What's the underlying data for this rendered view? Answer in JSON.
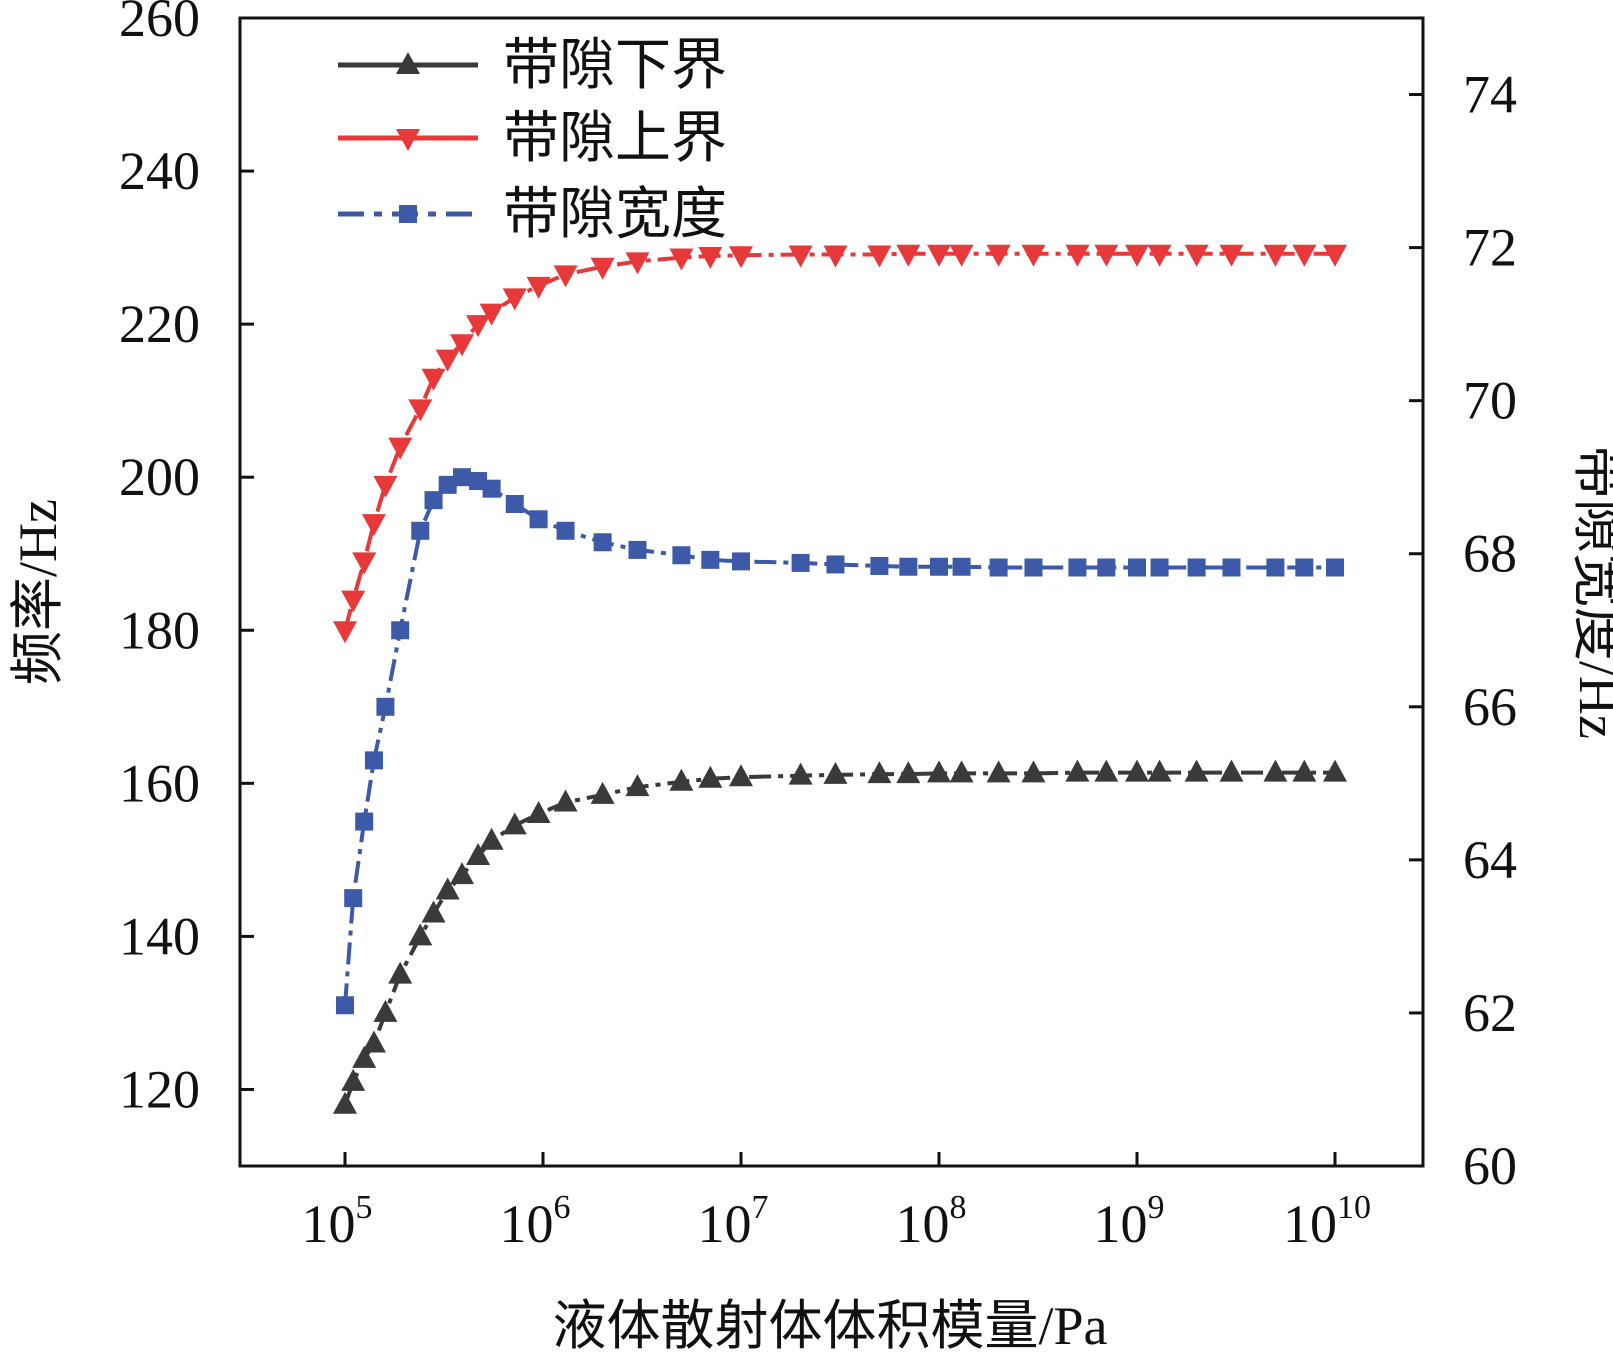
{
  "chart_data": {
    "type": "line",
    "xscale": "log",
    "x_ticks": [
      {
        "base": "10",
        "exp": "5",
        "value": 100000
      },
      {
        "base": "10",
        "exp": "6",
        "value": 1000000
      },
      {
        "base": "10",
        "exp": "7",
        "value": 10000000
      },
      {
        "base": "10",
        "exp": "8",
        "value": 100000000
      },
      {
        "base": "10",
        "exp": "9",
        "value": 1000000000
      },
      {
        "base": "10",
        "exp": "10",
        "value": 10000000000
      }
    ],
    "xlabel": "液体散射体体积模量/Pa",
    "ylabel": "频率/Hz",
    "ylim": [
      110,
      260
    ],
    "y_ticks": [
      "120",
      "140",
      "160",
      "180",
      "200",
      "220",
      "240",
      "260"
    ],
    "y2label": "带隙宽度/Hz",
    "y2lim": [
      60,
      75
    ],
    "y2_ticks": [
      "60",
      "62",
      "64",
      "66",
      "68",
      "70",
      "72",
      "74"
    ],
    "legend_position": "top-left",
    "x": [
      100000.0,
      110000.0,
      125000.0,
      140000.0,
      160000.0,
      190000.0,
      240000.0,
      280000.0,
      330000.0,
      390000.0,
      470000.0,
      550000.0,
      720000.0,
      950000.0,
      1300000.0,
      2000000.0,
      3000000.0,
      5000000.0,
      7000000.0,
      10000000.0,
      20000000.0,
      30000000.0,
      50000000.0,
      70000000.0,
      100000000.0,
      130000000.0,
      200000000.0,
      300000000.0,
      500000000.0,
      700000000.0,
      1000000000.0,
      1300000000.0,
      2000000000.0,
      3000000000.0,
      5000000000.0,
      7000000000.0,
      10000000000.0
    ],
    "series": [
      {
        "name": "带隙下界",
        "axis": "left",
        "color": "#3a3a3a",
        "marker": "triangle-up",
        "line": "dashdot",
        "values": [
          118,
          121,
          124,
          126,
          130,
          135,
          140,
          143,
          146,
          148,
          150.5,
          152.5,
          154.5,
          156,
          157.5,
          158.5,
          159.5,
          160.2,
          160.6,
          160.8,
          161,
          161.1,
          161.2,
          161.2,
          161.3,
          161.3,
          161.3,
          161.3,
          161.4,
          161.4,
          161.4,
          161.4,
          161.4,
          161.4,
          161.4,
          161.4,
          161.4
        ]
      },
      {
        "name": "带隙上界",
        "axis": "left",
        "color": "#e8393a",
        "marker": "triangle-down",
        "line": "dashdot",
        "values": [
          180,
          184,
          189,
          194,
          199,
          204,
          209,
          213,
          215.5,
          217.5,
          220,
          221.5,
          223.5,
          225,
          226.5,
          227.5,
          228.2,
          228.7,
          228.9,
          229,
          229.1,
          229.1,
          229.1,
          229.2,
          229.2,
          229.2,
          229.2,
          229.2,
          229.2,
          229.2,
          229.2,
          229.2,
          229.2,
          229.2,
          229.2,
          229.2,
          229.2
        ]
      },
      {
        "name": "带隙宽度",
        "axis": "right",
        "color": "#3c5aa8",
        "marker": "square",
        "line": "dashdot",
        "values": [
          62.1,
          63.5,
          64.5,
          65.3,
          66.0,
          67.0,
          68.3,
          68.7,
          68.9,
          69.0,
          68.95,
          68.85,
          68.65,
          68.45,
          68.3,
          68.15,
          68.05,
          67.98,
          67.92,
          67.9,
          67.88,
          67.86,
          67.84,
          67.83,
          67.83,
          67.83,
          67.82,
          67.82,
          67.82,
          67.82,
          67.82,
          67.82,
          67.82,
          67.82,
          67.82,
          67.82,
          67.82
        ]
      }
    ]
  }
}
